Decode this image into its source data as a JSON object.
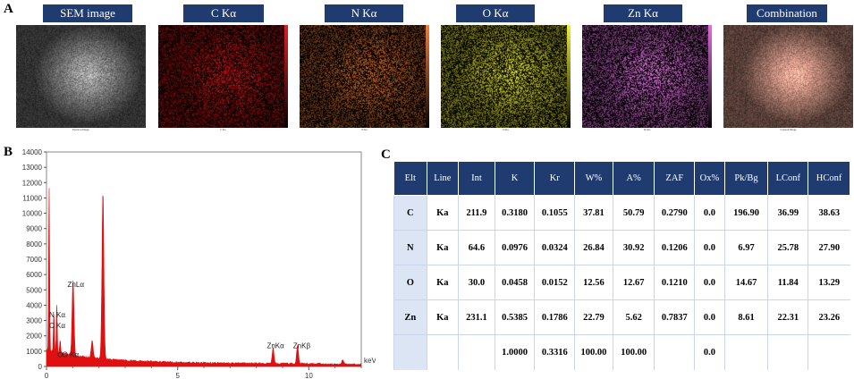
{
  "panels": {
    "a": "A",
    "b": "B",
    "c": "C"
  },
  "maps": [
    {
      "title": "SEM image",
      "caption": "Electron Image",
      "color": "#9a9a9a",
      "bar": ""
    },
    {
      "title": "C Kα",
      "caption": "C Ka",
      "color": "#b01010",
      "bar": "#e02020"
    },
    {
      "title": "N Kα",
      "caption": "N Ka",
      "color": "#b05a20",
      "bar": "#f08040"
    },
    {
      "title": "O Kα",
      "caption": "O Ka",
      "color": "#c8c820",
      "bar": "#f0f040"
    },
    {
      "title": "Zn Kα",
      "caption": "Zn Ka",
      "color": "#c060c0",
      "bar": "#e070e0"
    },
    {
      "title": "Combination",
      "caption": "Layered Image",
      "color": "#c89080",
      "bar": ""
    }
  ],
  "chart_data": {
    "type": "line",
    "xlabel": "keV",
    "xlim": [
      0,
      12
    ],
    "ylim": [
      0,
      14000
    ],
    "x_ticks": [
      0,
      5,
      10
    ],
    "y_ticks": [
      0,
      1000,
      2000,
      3000,
      4000,
      5000,
      6000,
      7000,
      8000,
      9000,
      10000,
      11000,
      12000,
      13000,
      14000
    ],
    "series_color": "#e01010",
    "peaks": [
      {
        "x": 0.1,
        "y": 10800
      },
      {
        "x": 0.28,
        "y": 2600
      },
      {
        "x": 0.39,
        "y": 3200
      },
      {
        "x": 0.52,
        "y": 900
      },
      {
        "x": 1.01,
        "y": 4900
      },
      {
        "x": 1.74,
        "y": 1100
      },
      {
        "x": 2.15,
        "y": 10900
      },
      {
        "x": 8.64,
        "y": 1000
      },
      {
        "x": 9.57,
        "y": 1200
      },
      {
        "x": 11.3,
        "y": 300
      }
    ],
    "annotations": [
      {
        "text": "ZnLα",
        "x": 0.7,
        "y": 5200
      },
      {
        "text": "N Kα",
        "x": 0.0,
        "y": 3200
      },
      {
        "text": "C Kα",
        "x": 0.0,
        "y": 2500
      },
      {
        "text": "O Kα",
        "x": 0.5,
        "y": 600
      },
      {
        "text": "ZnKα",
        "x": 8.3,
        "y": 1200
      },
      {
        "text": "ZnKβ",
        "x": 9.3,
        "y": 1200
      }
    ]
  },
  "table": {
    "headers": [
      "Elt",
      "Line",
      "Int",
      "K",
      "Kr",
      "W%",
      "A%",
      "ZAF",
      "Ox%",
      "Pk/Bg",
      "LConf",
      "HConf"
    ],
    "rows": [
      [
        "C",
        "Ka",
        "211.9",
        "0.3180",
        "0.1055",
        "37.81",
        "50.79",
        "0.2790",
        "0.0",
        "196.90",
        "36.99",
        "38.63"
      ],
      [
        "N",
        "Ka",
        "64.6",
        "0.0976",
        "0.0324",
        "26.84",
        "30.92",
        "0.1206",
        "0.0",
        "6.97",
        "25.78",
        "27.90"
      ],
      [
        "O",
        "Ka",
        "30.0",
        "0.0458",
        "0.0152",
        "12.56",
        "12.67",
        "0.1210",
        "0.0",
        "14.67",
        "11.84",
        "13.29"
      ],
      [
        "Zn",
        "Ka",
        "231.1",
        "0.5385",
        "0.1786",
        "22.79",
        "5.62",
        "0.7837",
        "0.0",
        "8.61",
        "22.31",
        "23.26"
      ],
      [
        "",
        "",
        "",
        "1.0000",
        "0.3316",
        "100.00",
        "100.00",
        "",
        "0.0",
        "",
        "",
        ""
      ]
    ]
  }
}
